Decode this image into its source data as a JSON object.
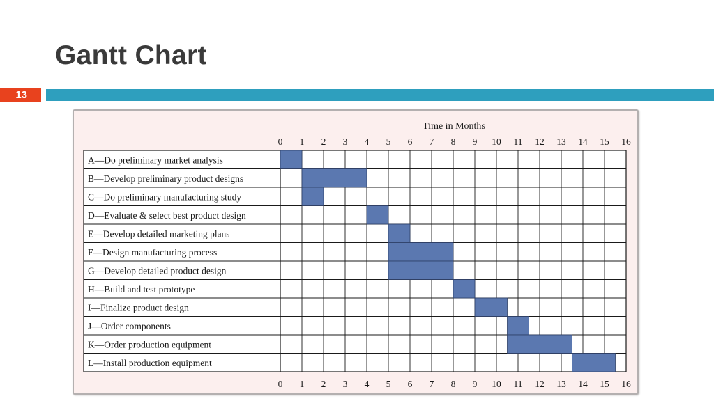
{
  "slide": {
    "title": "Gantt Chart",
    "number": "13",
    "accent_color": "#2e9fbe",
    "number_box_color": "#e8421e"
  },
  "chart_data": {
    "type": "gantt",
    "title": "Time in Months",
    "x_ticks": [
      "0",
      "1",
      "2",
      "3",
      "4",
      "5",
      "6",
      "7",
      "8",
      "9",
      "10",
      "11",
      "12",
      "13",
      "14",
      "15",
      "16"
    ],
    "xlim": [
      0,
      16
    ],
    "grid": true,
    "bar_color": "#5b78b0",
    "tasks": [
      {
        "label": "A—Do preliminary market analysis",
        "start": 0,
        "end": 1
      },
      {
        "label": "B—Develop preliminary product designs",
        "start": 1,
        "end": 4
      },
      {
        "label": "C—Do preliminary manufacturing study",
        "start": 1,
        "end": 2
      },
      {
        "label": "D—Evaluate & select best product design",
        "start": 4,
        "end": 5
      },
      {
        "label": "E—Develop detailed marketing plans",
        "start": 5,
        "end": 6
      },
      {
        "label": "F—Design manufacturing process",
        "start": 5,
        "end": 8
      },
      {
        "label": "G—Develop detailed product design",
        "start": 5,
        "end": 8
      },
      {
        "label": "H—Build and test prototype",
        "start": 8,
        "end": 9
      },
      {
        "label": "I—Finalize product design",
        "start": 9,
        "end": 10.5
      },
      {
        "label": "J—Order components",
        "start": 10.5,
        "end": 11.5
      },
      {
        "label": "K—Order production equipment",
        "start": 10.5,
        "end": 13.5
      },
      {
        "label": "L—Install production equipment",
        "start": 13.5,
        "end": 15.5
      }
    ]
  }
}
